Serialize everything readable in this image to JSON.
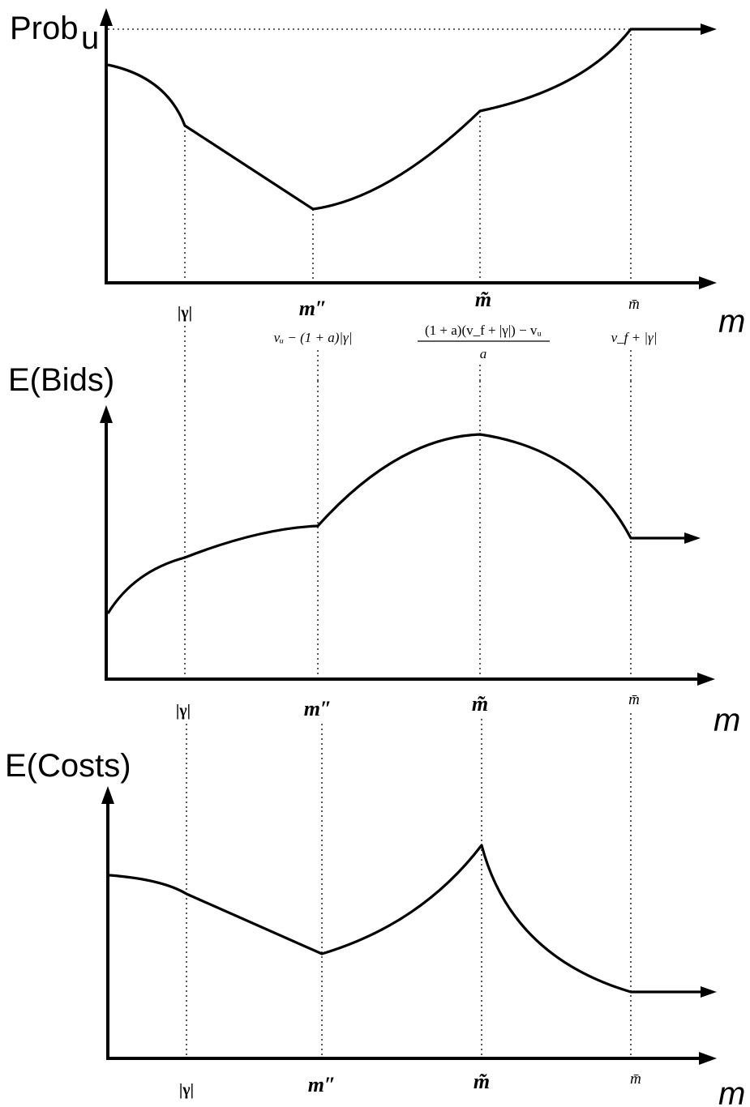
{
  "panels": [
    {
      "ylabel_main": "Prob",
      "ylabel_sub": "u",
      "xlabel": "m",
      "ticks": {
        "gamma": "|γ|",
        "m_dprime": "m″",
        "m_tilde": "m̃",
        "m_bar": "m̄"
      },
      "formulas": {
        "m_dprime": "vᵤ − (1 + a)|γ|",
        "m_tilde_num": "(1 + a)(v_f + |γ|) − vᵤ",
        "m_tilde_den": "a",
        "m_bar": "v_f + |γ|"
      }
    },
    {
      "ylabel_main": "E(Bids)",
      "xlabel": "m",
      "ticks": {
        "gamma": "|γ|",
        "m_dprime": "m″",
        "m_tilde": "m̃",
        "m_bar": "m̄"
      }
    },
    {
      "ylabel_main": "E(Costs)",
      "xlabel": "m",
      "ticks": {
        "gamma": "|γ|",
        "m_dprime": "m″",
        "m_tilde": "m̃",
        "m_bar": "m̄"
      }
    }
  ]
}
